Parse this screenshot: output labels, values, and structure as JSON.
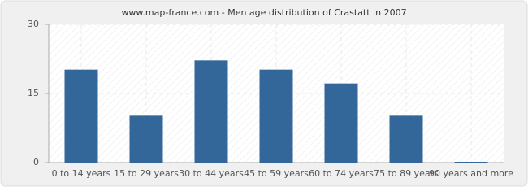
{
  "chart_data": {
    "type": "bar",
    "title": "www.map-france.com - Men age distribution of Crastatt in 2007",
    "categories": [
      "0 to 14 years",
      "15 to 29 years",
      "30 to 44 years",
      "45 to 59 years",
      "60 to 74 years",
      "75 to 89 years",
      "90 years and more"
    ],
    "values": [
      20,
      10,
      22,
      20,
      17,
      10,
      0
    ],
    "color": "#336699",
    "ylim": [
      0,
      30
    ],
    "yticks": [
      0,
      15,
      30
    ],
    "grid": true
  }
}
